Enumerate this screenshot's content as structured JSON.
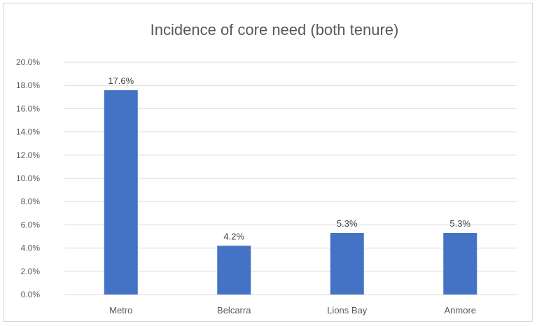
{
  "chart_data": {
    "type": "bar",
    "title": "Incidence of core need (both tenure)",
    "categories": [
      "Metro",
      "Belcarra",
      "Lions Bay",
      "Anmore"
    ],
    "values": [
      17.6,
      4.2,
      5.3,
      5.3
    ],
    "data_labels": [
      "17.6%",
      "4.2%",
      "5.3%",
      "5.3%"
    ],
    "ylim": [
      0,
      20
    ],
    "yticks": [
      0,
      2,
      4,
      6,
      8,
      10,
      12,
      14,
      16,
      18,
      20
    ],
    "ytick_labels": [
      "0.0%",
      "2.0%",
      "4.0%",
      "6.0%",
      "8.0%",
      "10.0%",
      "12.0%",
      "14.0%",
      "16.0%",
      "18.0%",
      "20.0%"
    ],
    "grid": true,
    "legend": "none",
    "bar_color": "#4472c4",
    "grid_color": "#d9d9d9"
  }
}
